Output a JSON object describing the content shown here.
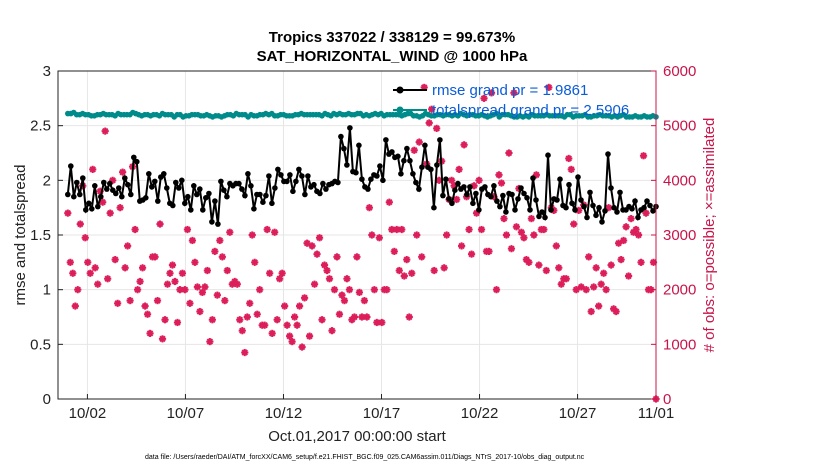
{
  "chart_data": {
    "type": "line",
    "title": "Tropics 337022 / 338129 = 99.673%",
    "subtitle": "SAT_HORIZONTAL_WIND @ 1000 hPa",
    "xlabel": "Oct.01,2017 00:00:00 start",
    "ylabel_left": "rmse and totalspread",
    "ylabel_right": "# of obs: o=possible; ×=assimilated",
    "footnote": "data file: /Users/raeder/DAI/ATM_forcXX/CAM6_setup/f.e21.FHIST_BGC.f09_025.CAM6assim.011/Diags_NTrS_2017-10/obs_diag_output.nc",
    "xlim": [
      30.5,
      61.0
    ],
    "ylim_left": [
      0,
      3
    ],
    "ylim_right": [
      0,
      6000
    ],
    "x_ticks": [
      {
        "value": 32,
        "label": "10/02"
      },
      {
        "value": 37,
        "label": "10/07"
      },
      {
        "value": 42,
        "label": "10/12"
      },
      {
        "value": 47,
        "label": "10/17"
      },
      {
        "value": 52,
        "label": "10/22"
      },
      {
        "value": 57,
        "label": "10/27"
      },
      {
        "value": 61,
        "label": "11/01"
      }
    ],
    "y_ticks_left": [
      "0",
      "0.5",
      "1",
      "1.5",
      "2",
      "2.5",
      "3"
    ],
    "y_ticks_right": [
      "0",
      "1000",
      "2000",
      "3000",
      "4000",
      "5000",
      "6000"
    ],
    "legend": [
      {
        "label": "rmse grand pr = 1.9861",
        "color": "#000000"
      },
      {
        "label": "totalspread grand pr = 2.5906",
        "color": "#008b8b"
      }
    ],
    "series": [
      {
        "name": "rmse",
        "color": "#000000",
        "values": [
          1.87,
          2.13,
          1.85,
          1.98,
          1.87,
          2.02,
          1.73,
          1.79,
          1.74,
          1.95,
          1.76,
          1.85,
          1.98,
          1.92,
          1.97,
          1.91,
          1.88,
          1.93,
          1.85,
          2.02,
          1.96,
          1.87,
          2.21,
          2.17,
          1.81,
          1.82,
          1.84,
          2.06,
          1.94,
          1.99,
          1.81,
          2.03,
          2.06,
          1.93,
          1.79,
          1.77,
          1.98,
          1.93,
          2.0,
          1.79,
          1.85,
          1.73,
          1.95,
          1.87,
          1.92,
          1.73,
          1.84,
          1.88,
          1.62,
          1.81,
          1.6,
          1.99,
          1.91,
          1.85,
          1.97,
          1.95,
          1.97,
          1.97,
          1.92,
          1.86,
          2.06,
          1.95,
          1.74,
          1.87,
          1.87,
          1.8,
          1.86,
          2.04,
          1.79,
          1.93,
          2.1,
          2.05,
          1.99,
          1.99,
          2.05,
          1.9,
          1.99,
          2.1,
          2.04,
          1.87,
          2.04,
          1.94,
          1.96,
          1.9,
          1.88,
          1.97,
          1.92,
          1.96,
          1.97,
          1.99,
          1.98,
          2.4,
          2.29,
          2.14,
          2.48,
          2.08,
          2.07,
          2.32,
          2.01,
          1.94,
          1.92,
          2.01,
          2.05,
          2.04,
          2.13,
          2.0,
          2.37,
          2.24,
          2.26,
          2.21,
          2.22,
          2.06,
          2.18,
          2.29,
          2.18,
          2.06,
          1.98,
          1.92,
          2.12,
          2.32,
          2.12,
          2.1,
          1.75,
          2.14,
          2.37,
          1.86,
          2.01,
          1.83,
          1.79,
          1.91,
          1.97,
          1.92,
          1.94,
          1.87,
          1.94,
          1.79,
          1.88,
          1.73,
          1.92,
          1.94,
          1.87,
          1.85,
          1.95,
          1.81,
          1.76,
          1.86,
          1.71,
          1.88,
          1.87,
          1.73,
          1.83,
          1.93,
          1.88,
          1.84,
          1.73,
          2.02,
          1.82,
          1.67,
          1.71,
          1.66,
          2.23,
          1.73,
          1.83,
          1.82,
          2.01,
          1.77,
          1.75,
          1.96,
          1.79,
          1.73,
          2.03,
          1.82,
          1.76,
          1.66,
          1.89,
          1.77,
          1.68,
          1.75,
          1.62,
          1.72,
          2.24,
          1.93,
          1.75,
          1.71,
          1.89,
          1.73,
          1.73,
          1.76,
          1.74,
          1.81,
          1.66,
          1.73,
          1.75,
          1.81,
          1.77,
          1.72,
          1.76
        ]
      },
      {
        "name": "totalspread",
        "color": "#008b8b",
        "values": [
          2.61,
          2.61,
          2.62,
          2.6,
          2.6,
          2.61,
          2.6,
          2.6,
          2.59,
          2.59,
          2.6,
          2.6,
          2.61,
          2.6,
          2.6,
          2.6,
          2.59,
          2.61,
          2.6,
          2.6,
          2.6,
          2.6,
          2.62,
          2.61,
          2.6,
          2.59,
          2.6,
          2.6,
          2.59,
          2.6,
          2.6,
          2.59,
          2.61,
          2.6,
          2.6,
          2.6,
          2.58,
          2.6,
          2.6,
          2.58,
          2.59,
          2.59,
          2.6,
          2.6,
          2.6,
          2.59,
          2.59,
          2.6,
          2.59,
          2.58,
          2.59,
          2.59,
          2.58,
          2.59,
          2.6,
          2.6,
          2.59,
          2.61,
          2.6,
          2.6,
          2.6,
          2.58,
          2.6,
          2.59,
          2.59,
          2.6,
          2.6,
          2.61,
          2.6,
          2.61,
          2.59,
          2.59,
          2.6,
          2.6,
          2.59,
          2.59,
          2.59,
          2.6,
          2.6,
          2.61,
          2.6,
          2.6,
          2.6,
          2.6,
          2.6,
          2.6,
          2.59,
          2.61,
          2.6,
          2.59,
          2.61,
          2.6,
          2.61,
          2.6,
          2.6,
          2.61,
          2.6,
          2.6,
          2.61,
          2.61,
          2.59,
          2.6,
          2.59,
          2.6,
          2.61,
          2.6,
          2.61,
          2.59,
          2.6,
          2.6,
          2.6,
          2.6,
          2.6,
          2.59,
          2.6,
          2.61,
          2.61,
          2.59,
          2.59,
          2.58,
          2.59,
          2.61,
          2.6,
          2.59,
          2.59,
          2.6,
          2.6,
          2.59,
          2.6,
          2.6,
          2.59,
          2.6,
          2.59,
          2.61,
          2.6,
          2.59,
          2.6,
          2.6,
          2.59,
          2.59,
          2.6,
          2.59,
          2.58,
          2.59,
          2.6,
          2.61,
          2.58,
          2.6,
          2.6,
          2.6,
          2.59,
          2.58,
          2.58,
          2.59,
          2.58,
          2.59,
          2.58,
          2.6,
          2.59,
          2.59,
          2.59,
          2.59,
          2.6,
          2.59,
          2.59,
          2.59,
          2.59,
          2.59,
          2.58,
          2.6,
          2.6,
          2.58,
          2.59,
          2.59,
          2.59,
          2.6,
          2.58,
          2.58,
          2.59,
          2.59,
          2.6,
          2.59,
          2.59,
          2.59,
          2.58,
          2.59,
          2.58,
          2.59,
          2.6,
          2.58,
          2.58,
          2.58,
          2.59,
          2.58,
          2.58,
          2.59,
          2.58,
          2.58,
          2.59,
          2.58
        ]
      },
      {
        "name": "nobs",
        "color": "#dc1e5a",
        "axis": "right",
        "values": [
          3400,
          2500,
          2300,
          1700,
          2000,
          3200,
          3900,
          2950,
          2500,
          2300,
          4200,
          2400,
          2100,
          3800,
          3600,
          4900,
          2200,
          3400,
          4000,
          2550,
          1750,
          3500,
          4150,
          2400,
          2800,
          1800,
          4250,
          3100,
          2000,
          2150,
          2400,
          1700,
          1550,
          1200,
          2600,
          2600,
          1800,
          3200,
          1100,
          1450,
          2100,
          2300,
          2450,
          2150,
          1400,
          2000,
          2300,
          2000,
          3100,
          1750,
          2900,
          2500,
          2050,
          1600,
          1950,
          2050,
          2350,
          1050,
          1450,
          2700,
          1900,
          2900,
          2600,
          1800,
          2350,
          3050,
          2100,
          2150,
          2100,
          1450,
          1250,
          850,
          1500,
          1750,
          3000,
          2500,
          1550,
          2000,
          1350,
          1350,
          3100,
          2300,
          1200,
          3050,
          1450,
          2200,
          2300,
          1700,
          1350,
          1150,
          1050,
          1500,
          1350,
          1700,
          950,
          1850,
          2850,
          1150,
          2800,
          2100,
          2650,
          2950,
          1450,
          2450,
          2350,
          2200,
          1250,
          2000,
          2600,
          1550,
          1900,
          1800,
          2200,
          2000,
          1450,
          1500,
          2600,
          1950,
          1500,
          1800,
          1500,
          3500,
          3000,
          2000,
          1400,
          2950,
          1400,
          2000,
          2000,
          3600,
          3100,
          2700,
          3100,
          2350,
          3100,
          2250,
          2550,
          1500,
          2300,
          4550,
          3000,
          4700,
          2600,
          5700,
          4300,
          5050,
          5300,
          2350,
          4950,
          4000,
          4350,
          2400,
          3000,
          3650,
          4000,
          3900,
          3650,
          4200,
          2800,
          4650,
          3700,
          3100,
          2650,
          3900,
          3400,
          4000,
          3100,
          5500,
          2700,
          2700,
          5600,
          3700,
          2000,
          4100,
          3950,
          3300,
          3000,
          4500,
          2750,
          5600,
          3150,
          3850,
          3050,
          2950,
          2550,
          2500,
          3300,
          3000,
          4100,
          2450,
          3100,
          3100,
          2350,
          5700,
          3500,
          3450,
          2800,
          2400,
          2100,
          2200,
          2200,
          4400,
          4200,
          3200,
          2000,
          3450,
          2050,
          3550,
          2000,
          2600,
          1600,
          2050,
          2400,
          1700,
          2100,
          2300,
          2000,
          3500,
          2450,
          1650,
          1600,
          2850,
          2550,
          2900,
          3150,
          2250,
          3300,
          3050,
          3100,
          3000,
          2500,
          4450,
          3400,
          2000,
          2000,
          2500,
          0
        ]
      }
    ]
  }
}
